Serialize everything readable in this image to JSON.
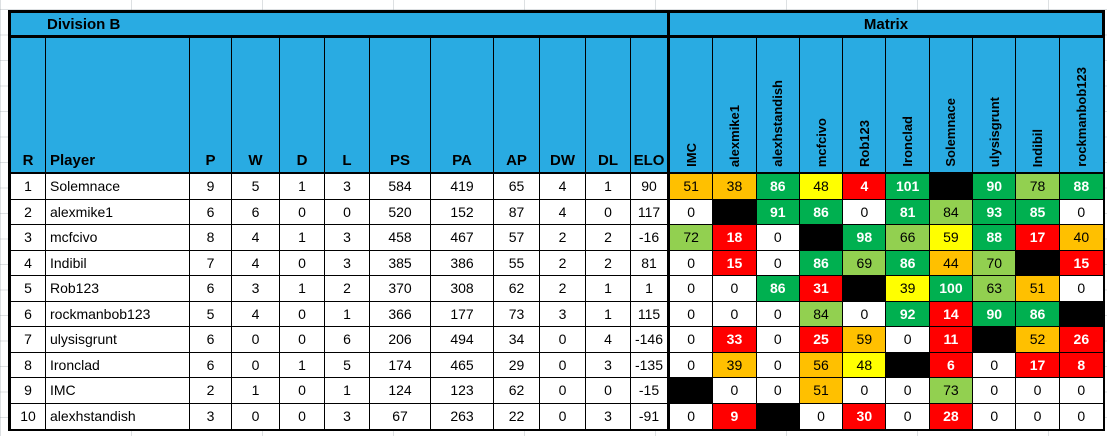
{
  "palette": {
    "header_blue": "#29ABE2",
    "green": "#00B050",
    "lightgreen": "#92D050",
    "yellow": "#FFFF00",
    "orange": "#FFC000",
    "red": "#FF0000",
    "black": "#000000",
    "white": "#FFFFFF"
  },
  "left_table": {
    "title": "Division B",
    "columns": [
      "R",
      "Player",
      "P",
      "W",
      "D",
      "L",
      "PS",
      "PA",
      "AP",
      "DW",
      "DL",
      "ELO"
    ],
    "rows": [
      {
        "r": 1,
        "player": "Solemnace",
        "p": 9,
        "w": 5,
        "d": 1,
        "l": 3,
        "ps": 584,
        "pa": 419,
        "ap": 65,
        "dw": 4,
        "dl": 1,
        "elo": 90
      },
      {
        "r": 2,
        "player": "alexmike1",
        "p": 6,
        "w": 6,
        "d": 0,
        "l": 0,
        "ps": 520,
        "pa": 152,
        "ap": 87,
        "dw": 4,
        "dl": 0,
        "elo": 117
      },
      {
        "r": 3,
        "player": "mcfcivo",
        "p": 8,
        "w": 4,
        "d": 1,
        "l": 3,
        "ps": 458,
        "pa": 467,
        "ap": 57,
        "dw": 2,
        "dl": 2,
        "elo": -16
      },
      {
        "r": 4,
        "player": "Indibil",
        "p": 7,
        "w": 4,
        "d": 0,
        "l": 3,
        "ps": 385,
        "pa": 386,
        "ap": 55,
        "dw": 2,
        "dl": 2,
        "elo": 81
      },
      {
        "r": 5,
        "player": "Rob123",
        "p": 6,
        "w": 3,
        "d": 1,
        "l": 2,
        "ps": 370,
        "pa": 308,
        "ap": 62,
        "dw": 2,
        "dl": 1,
        "elo": 1
      },
      {
        "r": 6,
        "player": "rockmanbob123",
        "p": 5,
        "w": 4,
        "d": 0,
        "l": 1,
        "ps": 366,
        "pa": 177,
        "ap": 73,
        "dw": 3,
        "dl": 1,
        "elo": 115
      },
      {
        "r": 7,
        "player": "ulysisgrunt",
        "p": 6,
        "w": 0,
        "d": 0,
        "l": 6,
        "ps": 206,
        "pa": 494,
        "ap": 34,
        "dw": 0,
        "dl": 4,
        "elo": -146
      },
      {
        "r": 8,
        "player": "Ironclad",
        "p": 6,
        "w": 0,
        "d": 1,
        "l": 5,
        "ps": 174,
        "pa": 465,
        "ap": 29,
        "dw": 0,
        "dl": 3,
        "elo": -135
      },
      {
        "r": 9,
        "player": "IMC",
        "p": 2,
        "w": 1,
        "d": 0,
        "l": 1,
        "ps": 124,
        "pa": 123,
        "ap": 62,
        "dw": 0,
        "dl": 0,
        "elo": -15
      },
      {
        "r": 10,
        "player": "alexhstandish",
        "p": 3,
        "w": 0,
        "d": 0,
        "l": 3,
        "ps": 67,
        "pa": 263,
        "ap": 22,
        "dw": 0,
        "dl": 3,
        "elo": -91
      }
    ]
  },
  "matrix": {
    "title": "Matrix",
    "columns": [
      "IMC",
      "alexmike1",
      "alexhstandish",
      "mcfcivo",
      "Rob123",
      "Ironclad",
      "Solemnace",
      "ulysisgrunt",
      "Indibil",
      "rockmanbob123"
    ],
    "cells": [
      [
        {
          "v": "51",
          "c": "orange"
        },
        {
          "v": "38",
          "c": "orange"
        },
        {
          "v": "86",
          "c": "green"
        },
        {
          "v": "48",
          "c": "yellow"
        },
        {
          "v": "4",
          "c": "red"
        },
        {
          "v": "101",
          "c": "green"
        },
        {
          "v": "",
          "c": "black"
        },
        {
          "v": "90",
          "c": "green"
        },
        {
          "v": "78",
          "c": "lightgreen"
        },
        {
          "v": "88",
          "c": "green"
        }
      ],
      [
        {
          "v": "0",
          "c": "white"
        },
        {
          "v": "",
          "c": "black"
        },
        {
          "v": "91",
          "c": "green"
        },
        {
          "v": "86",
          "c": "green"
        },
        {
          "v": "0",
          "c": "white"
        },
        {
          "v": "81",
          "c": "green"
        },
        {
          "v": "84",
          "c": "lightgreen"
        },
        {
          "v": "93",
          "c": "green"
        },
        {
          "v": "85",
          "c": "green"
        },
        {
          "v": "0",
          "c": "white"
        }
      ],
      [
        {
          "v": "72",
          "c": "lightgreen"
        },
        {
          "v": "18",
          "c": "red"
        },
        {
          "v": "0",
          "c": "white"
        },
        {
          "v": "",
          "c": "black"
        },
        {
          "v": "98",
          "c": "green"
        },
        {
          "v": "66",
          "c": "lightgreen"
        },
        {
          "v": "59",
          "c": "yellow"
        },
        {
          "v": "88",
          "c": "green"
        },
        {
          "v": "17",
          "c": "red"
        },
        {
          "v": "40",
          "c": "orange"
        }
      ],
      [
        {
          "v": "0",
          "c": "white"
        },
        {
          "v": "15",
          "c": "red"
        },
        {
          "v": "0",
          "c": "white"
        },
        {
          "v": "86",
          "c": "green"
        },
        {
          "v": "69",
          "c": "lightgreen"
        },
        {
          "v": "86",
          "c": "green"
        },
        {
          "v": "44",
          "c": "orange"
        },
        {
          "v": "70",
          "c": "lightgreen"
        },
        {
          "v": "",
          "c": "black"
        },
        {
          "v": "15",
          "c": "red"
        }
      ],
      [
        {
          "v": "0",
          "c": "white"
        },
        {
          "v": "0",
          "c": "white"
        },
        {
          "v": "86",
          "c": "green"
        },
        {
          "v": "31",
          "c": "red"
        },
        {
          "v": "",
          "c": "black"
        },
        {
          "v": "39",
          "c": "yellow"
        },
        {
          "v": "100",
          "c": "green"
        },
        {
          "v": "63",
          "c": "lightgreen"
        },
        {
          "v": "51",
          "c": "orange"
        },
        {
          "v": "0",
          "c": "white"
        }
      ],
      [
        {
          "v": "0",
          "c": "white"
        },
        {
          "v": "0",
          "c": "white"
        },
        {
          "v": "0",
          "c": "white"
        },
        {
          "v": "84",
          "c": "lightgreen"
        },
        {
          "v": "0",
          "c": "white"
        },
        {
          "v": "92",
          "c": "green"
        },
        {
          "v": "14",
          "c": "red"
        },
        {
          "v": "90",
          "c": "green"
        },
        {
          "v": "86",
          "c": "green"
        },
        {
          "v": "",
          "c": "black"
        }
      ],
      [
        {
          "v": "0",
          "c": "white"
        },
        {
          "v": "33",
          "c": "red"
        },
        {
          "v": "0",
          "c": "white"
        },
        {
          "v": "25",
          "c": "red"
        },
        {
          "v": "59",
          "c": "orange"
        },
        {
          "v": "0",
          "c": "white"
        },
        {
          "v": "11",
          "c": "red"
        },
        {
          "v": "",
          "c": "black"
        },
        {
          "v": "52",
          "c": "orange"
        },
        {
          "v": "26",
          "c": "red"
        }
      ],
      [
        {
          "v": "0",
          "c": "white"
        },
        {
          "v": "39",
          "c": "orange"
        },
        {
          "v": "0",
          "c": "white"
        },
        {
          "v": "56",
          "c": "orange"
        },
        {
          "v": "48",
          "c": "yellow"
        },
        {
          "v": "",
          "c": "black"
        },
        {
          "v": "6",
          "c": "red"
        },
        {
          "v": "0",
          "c": "white"
        },
        {
          "v": "17",
          "c": "red"
        },
        {
          "v": "8",
          "c": "red"
        }
      ],
      [
        {
          "v": "",
          "c": "black"
        },
        {
          "v": "0",
          "c": "white"
        },
        {
          "v": "0",
          "c": "white"
        },
        {
          "v": "51",
          "c": "orange"
        },
        {
          "v": "0",
          "c": "white"
        },
        {
          "v": "0",
          "c": "white"
        },
        {
          "v": "73",
          "c": "lightgreen"
        },
        {
          "v": "0",
          "c": "white"
        },
        {
          "v": "0",
          "c": "white"
        },
        {
          "v": "0",
          "c": "white"
        }
      ],
      [
        {
          "v": "0",
          "c": "white"
        },
        {
          "v": "9",
          "c": "red"
        },
        {
          "v": "",
          "c": "black"
        },
        {
          "v": "0",
          "c": "white"
        },
        {
          "v": "30",
          "c": "red"
        },
        {
          "v": "0",
          "c": "white"
        },
        {
          "v": "28",
          "c": "red"
        },
        {
          "v": "0",
          "c": "white"
        },
        {
          "v": "0",
          "c": "white"
        },
        {
          "v": "0",
          "c": "white"
        }
      ]
    ]
  }
}
